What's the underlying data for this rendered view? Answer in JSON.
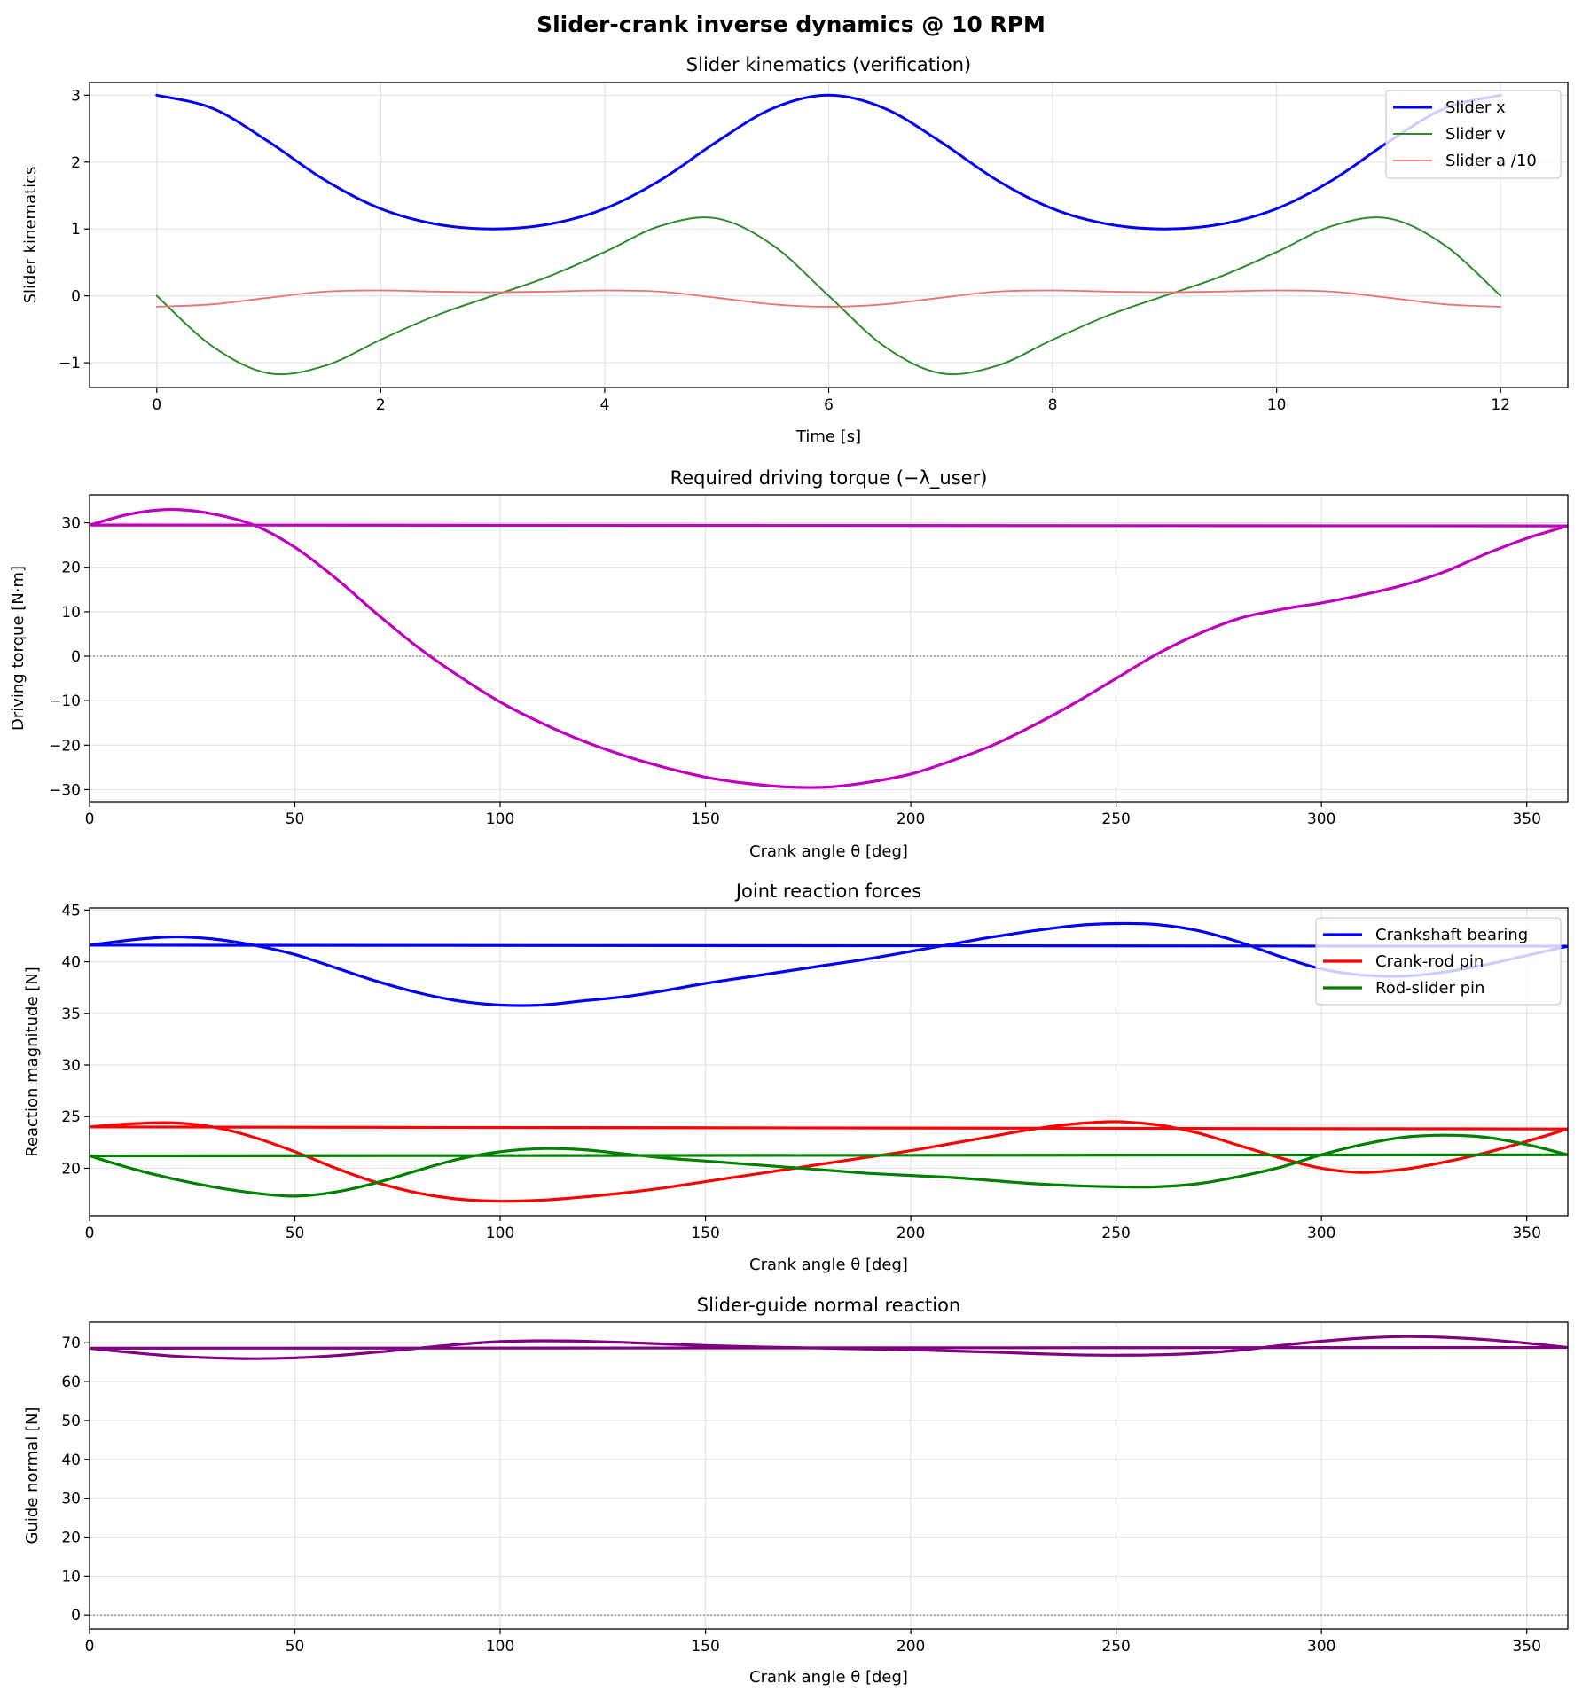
{
  "figure_title": "Slider-crank inverse dynamics @ 10 RPM",
  "chart_data": [
    {
      "type": "line",
      "title": "Slider kinematics (verification)",
      "xlabel": "Time [s]",
      "ylabel": "Slider kinematics",
      "xlim": [
        -0.6,
        12.6
      ],
      "ylim": [
        -1.37,
        3.19
      ],
      "xticks": [
        0,
        2,
        4,
        6,
        8,
        10,
        12
      ],
      "yticks": [
        -1,
        0,
        1,
        2,
        3
      ],
      "grid": true,
      "legend": "top-right",
      "zero_line": false,
      "series": [
        {
          "name": "Slider x",
          "color": "#0000ff",
          "width": 3,
          "x": [
            0,
            0.5,
            1,
            1.5,
            2,
            2.5,
            3,
            3.5,
            4,
            4.5,
            5,
            5.5,
            6,
            6.5,
            7,
            7.5,
            8,
            8.5,
            9,
            9.5,
            10,
            10.5,
            11,
            11.5,
            12
          ],
          "y": [
            3,
            2.803,
            2.303,
            1.732,
            1.303,
            1.07,
            1,
            1.07,
            1.303,
            1.732,
            2.303,
            2.803,
            3,
            2.803,
            2.303,
            1.732,
            1.303,
            1.07,
            1,
            1.07,
            1.303,
            1.732,
            2.303,
            2.803,
            3
          ]
        },
        {
          "name": "Slider v",
          "color": "#2e8b2e",
          "width": 2,
          "x": [
            0,
            0.5,
            1,
            1.5,
            2,
            2.5,
            3,
            3.5,
            4,
            4.5,
            5,
            5.5,
            6,
            6.5,
            7,
            7.5,
            8,
            8.5,
            9,
            9.5,
            10,
            10.5,
            11,
            11.5,
            12
          ],
          "y": [
            0,
            -0.758,
            -1.158,
            -1.047,
            -0.655,
            -0.289,
            0,
            0.289,
            0.655,
            1.047,
            1.158,
            0.758,
            0,
            -0.758,
            -1.158,
            -1.047,
            -0.655,
            -0.289,
            0,
            0.289,
            0.655,
            1.047,
            1.158,
            0.758,
            0
          ]
        },
        {
          "name": "Slider a /10",
          "color": "#f07070",
          "width": 1.8,
          "x": [
            0,
            0.5,
            1,
            1.5,
            2,
            2.5,
            3,
            3.5,
            4,
            4.5,
            5,
            5.5,
            6,
            6.5,
            7,
            7.5,
            8,
            8.5,
            9,
            9.5,
            10,
            10.5,
            11,
            11.5,
            12
          ],
          "y": [
            -0.164,
            -0.126,
            -0.028,
            0.063,
            0.082,
            0.064,
            0.055,
            0.064,
            0.082,
            0.063,
            -0.028,
            -0.126,
            -0.164,
            -0.126,
            -0.028,
            0.063,
            0.082,
            0.064,
            0.055,
            0.064,
            0.082,
            0.063,
            -0.028,
            -0.126,
            -0.164
          ]
        }
      ]
    },
    {
      "type": "line",
      "title": "Required driving torque (−λ_user)",
      "xlabel": "Crank angle θ [deg]",
      "ylabel": "Driving torque [N·m]",
      "xlim": [
        0,
        360
      ],
      "ylim": [
        -32.7,
        36.3
      ],
      "xticks": [
        0,
        50,
        100,
        150,
        200,
        250,
        300,
        350
      ],
      "yticks": [
        -30,
        -20,
        -10,
        0,
        10,
        20,
        30
      ],
      "grid": true,
      "legend": "none",
      "zero_line": true,
      "series": [
        {
          "color": "#bf00bf",
          "width": 3.2,
          "x": [
            0,
            10,
            20,
            30,
            40,
            50,
            60,
            70,
            80,
            90,
            100,
            110,
            120,
            130,
            140,
            150,
            160,
            170,
            180,
            190,
            200,
            210,
            220,
            230,
            240,
            250,
            260,
            270,
            280,
            290,
            300,
            310,
            320,
            330,
            340,
            350,
            360,
            0
          ],
          "y": [
            29.5,
            32,
            33,
            32,
            29.5,
            24.5,
            17.5,
            9.5,
            2,
            -4.5,
            -10.3,
            -15,
            -19,
            -22.3,
            -25,
            -27.2,
            -28.6,
            -29.4,
            -29.4,
            -28.3,
            -26.5,
            -23.5,
            -20,
            -15.5,
            -10.5,
            -5,
            0.5,
            5,
            8.5,
            10.5,
            12,
            13.8,
            16,
            19,
            23,
            26.5,
            29.3,
            29.5
          ]
        }
      ]
    },
    {
      "type": "line",
      "title": "Joint reaction forces",
      "xlabel": "Crank angle θ [deg]",
      "ylabel": "Reaction magnitude [N]",
      "xlim": [
        0,
        360
      ],
      "ylim": [
        15.4,
        45.2
      ],
      "xticks": [
        0,
        50,
        100,
        150,
        200,
        250,
        300,
        350
      ],
      "yticks": [
        20,
        25,
        30,
        35,
        40,
        45
      ],
      "grid": true,
      "legend": "top-right",
      "zero_line": false,
      "series": [
        {
          "name": "Crankshaft bearing",
          "color": "#0000ff",
          "width": 3.2,
          "x": [
            0,
            10,
            20,
            30,
            40,
            50,
            60,
            70,
            80,
            90,
            100,
            110,
            120,
            130,
            140,
            150,
            160,
            170,
            180,
            190,
            200,
            210,
            220,
            230,
            240,
            250,
            260,
            270,
            280,
            290,
            300,
            310,
            320,
            330,
            340,
            350,
            360,
            0
          ],
          "y": [
            41.6,
            42.1,
            42.4,
            42.2,
            41.6,
            40.7,
            39.4,
            38.1,
            37,
            36.2,
            35.8,
            35.8,
            36.2,
            36.6,
            37.2,
            37.9,
            38.5,
            39.1,
            39.7,
            40.3,
            41,
            41.7,
            42.4,
            43,
            43.5,
            43.7,
            43.6,
            43,
            41.9,
            40.5,
            39.3,
            38.7,
            38.6,
            39,
            39.7,
            40.6,
            41.5,
            41.6
          ]
        },
        {
          "name": "Crank-rod pin",
          "color": "#ff0000",
          "width": 3.2,
          "x": [
            0,
            10,
            20,
            30,
            40,
            50,
            60,
            70,
            80,
            90,
            100,
            110,
            120,
            130,
            140,
            150,
            160,
            170,
            180,
            190,
            200,
            210,
            220,
            230,
            240,
            250,
            260,
            270,
            280,
            290,
            300,
            310,
            320,
            330,
            340,
            350,
            360,
            0
          ],
          "y": [
            24,
            24.3,
            24.4,
            24,
            23,
            21.6,
            20,
            18.6,
            17.6,
            17,
            16.8,
            16.9,
            17.2,
            17.6,
            18.1,
            18.7,
            19.3,
            19.9,
            20.5,
            21.1,
            21.7,
            22.4,
            23.1,
            23.8,
            24.3,
            24.5,
            24.2,
            23.4,
            22.2,
            21,
            20,
            19.6,
            19.9,
            20.6,
            21.5,
            22.6,
            23.8,
            24
          ]
        },
        {
          "name": "Rod-slider pin",
          "color": "#008000",
          "width": 3.2,
          "x": [
            0,
            10,
            20,
            30,
            40,
            50,
            60,
            70,
            80,
            90,
            100,
            110,
            120,
            130,
            140,
            150,
            160,
            170,
            180,
            190,
            200,
            210,
            220,
            230,
            240,
            250,
            260,
            270,
            280,
            290,
            300,
            310,
            320,
            330,
            340,
            350,
            360,
            0
          ],
          "y": [
            21.2,
            20,
            19,
            18.2,
            17.6,
            17.3,
            17.7,
            18.6,
            19.8,
            20.9,
            21.6,
            21.9,
            21.8,
            21.4,
            21,
            20.7,
            20.4,
            20.1,
            19.8,
            19.5,
            19.3,
            19.1,
            18.8,
            18.5,
            18.3,
            18.2,
            18.2,
            18.5,
            19.2,
            20.1,
            21.3,
            22.3,
            23,
            23.2,
            23,
            22.3,
            21.3,
            21.2
          ]
        }
      ]
    },
    {
      "type": "line",
      "title": "Slider-guide normal reaction",
      "xlabel": "Crank angle θ [deg]",
      "ylabel": "Guide normal [N]",
      "xlim": [
        0,
        360
      ],
      "ylim": [
        -3.6,
        75.3
      ],
      "xticks": [
        0,
        50,
        100,
        150,
        200,
        250,
        300,
        350
      ],
      "yticks": [
        0,
        10,
        20,
        30,
        40,
        50,
        60,
        70
      ],
      "grid": true,
      "legend": "none",
      "zero_line": true,
      "series": [
        {
          "color": "#800080",
          "width": 3.2,
          "x": [
            0,
            10,
            20,
            30,
            40,
            50,
            60,
            70,
            80,
            90,
            100,
            110,
            120,
            130,
            140,
            150,
            160,
            170,
            180,
            190,
            200,
            210,
            220,
            230,
            240,
            250,
            260,
            270,
            280,
            290,
            300,
            310,
            320,
            330,
            340,
            350,
            360,
            0
          ],
          "y": [
            68.6,
            67.5,
            66.6,
            66.1,
            65.9,
            66.1,
            66.7,
            67.6,
            68.6,
            69.6,
            70.3,
            70.5,
            70.4,
            70.1,
            69.7,
            69.3,
            69,
            68.8,
            68.6,
            68.4,
            68.2,
            67.9,
            67.6,
            67.2,
            66.9,
            66.8,
            66.9,
            67.3,
            68.1,
            69.3,
            70.4,
            71.2,
            71.6,
            71.4,
            70.8,
            69.9,
            68.8,
            68.6
          ]
        }
      ]
    }
  ]
}
